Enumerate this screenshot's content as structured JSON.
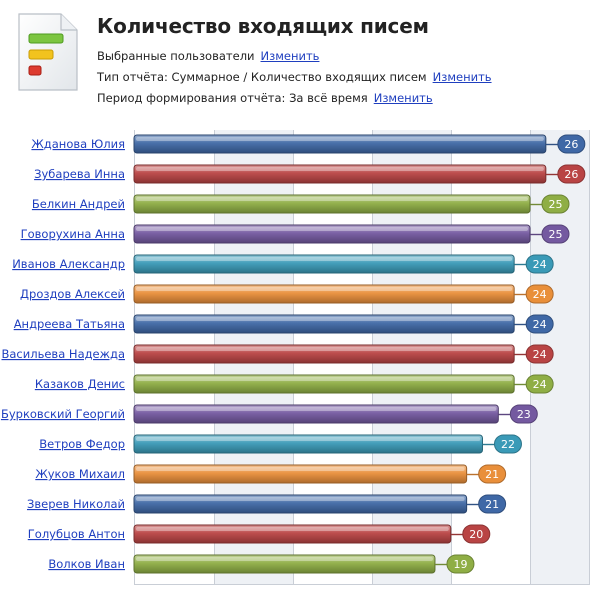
{
  "header": {
    "title": "Количество входящих писем",
    "users_label": "Выбранные пользователи",
    "users_link": "Изменить",
    "type_label": "Тип отчёта:  Суммарное / Количество входящих писем",
    "type_link": "Изменить",
    "period_label": "Период формирования отчёта: За всё время",
    "period_link": "Изменить",
    "icon": "report-document-icon"
  },
  "colors": {
    "blue": "#3f68a6",
    "red": "#b94444",
    "green": "#8fae45",
    "purple": "#7459a0",
    "teal": "#3a9ab7",
    "orange": "#e98f3a",
    "link": "#1f3fbf"
  },
  "chart_data": {
    "type": "bar",
    "orientation": "horizontal",
    "categories": [
      "Жданова Юлия",
      "Зубарева Инна",
      "Белкин Андрей",
      "Говорухина Анна",
      "Иванов Александр",
      "Дроздов Алексей",
      "Андреева Татьяна",
      "Васильева Надежда",
      "Казаков Денис",
      "Бурковский Георгий",
      "Ветров Федор",
      "Жуков Михаил",
      "Зверев Николай",
      "Голубцов Антон",
      "Волков Иван"
    ],
    "values": [
      26,
      26,
      25,
      25,
      24,
      24,
      24,
      24,
      24,
      23,
      22,
      21,
      21,
      20,
      19
    ],
    "value_labels": [
      "26",
      "26",
      "25",
      "25",
      "24",
      "24",
      "24",
      "24",
      "24",
      "23",
      "22",
      "21",
      "21",
      "20",
      "19"
    ],
    "bar_colors": [
      "blue",
      "red",
      "green",
      "purple",
      "teal",
      "orange",
      "blue",
      "red",
      "green",
      "purple",
      "teal",
      "orange",
      "blue",
      "red",
      "green"
    ],
    "xlim": [
      0,
      25
    ],
    "grid": true,
    "legend": "none"
  }
}
